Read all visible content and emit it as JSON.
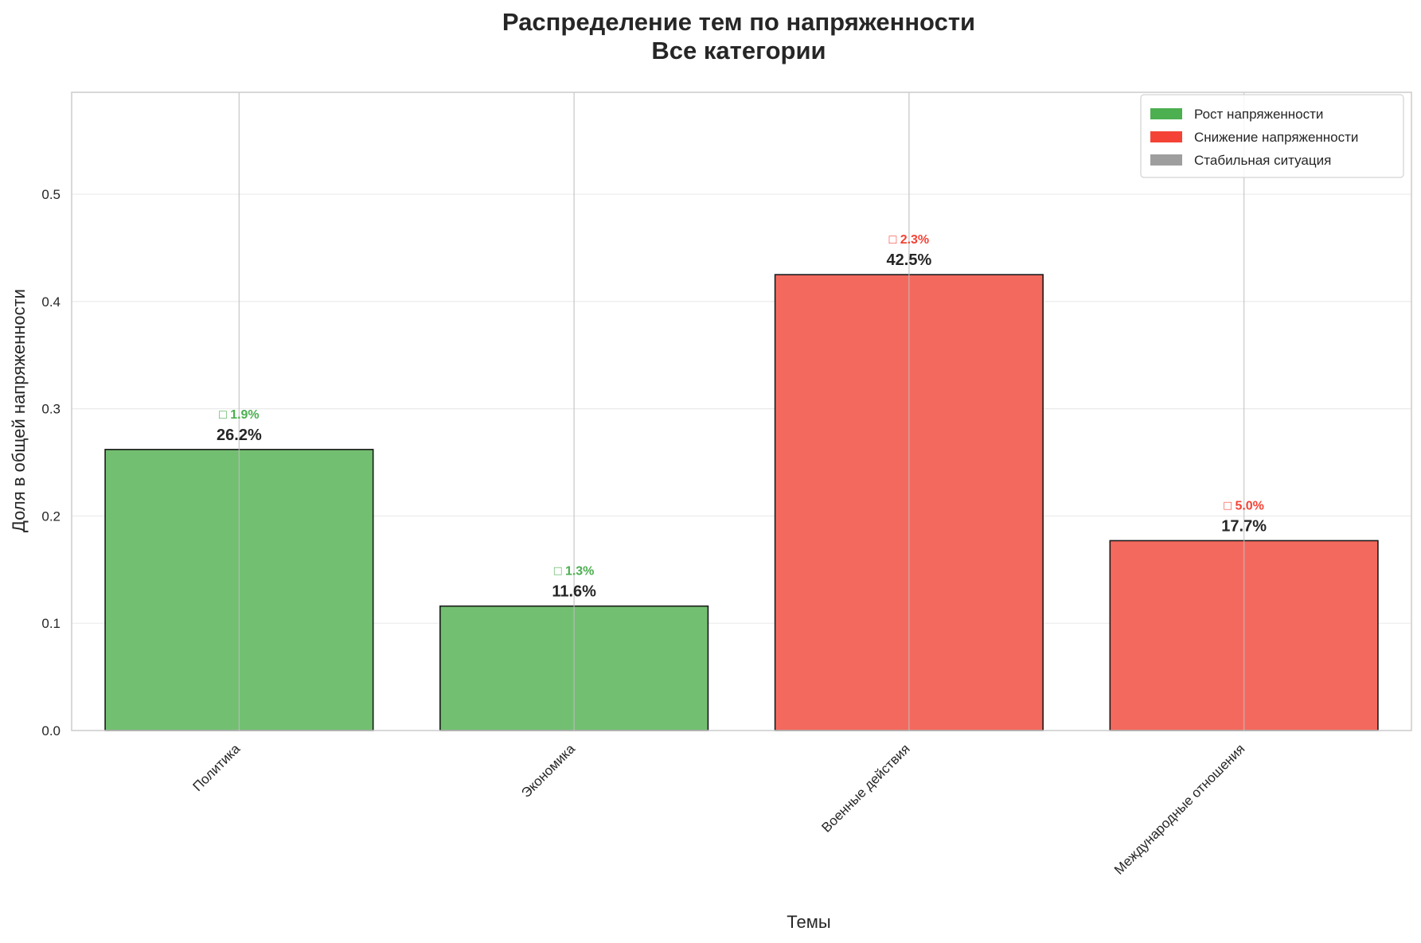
{
  "chart_data": {
    "type": "bar",
    "title": "Распределение тем по напряженности",
    "subtitle": "Все категории",
    "xlabel": "Темы",
    "ylabel": "Доля в общей напряженности",
    "categories": [
      "Политика",
      "Экономика",
      "Военные действия",
      "Международные отношения"
    ],
    "values": [
      0.262,
      0.116,
      0.425,
      0.177
    ],
    "value_labels": [
      "26.2%",
      "11.6%",
      "42.5%",
      "17.7%"
    ],
    "change_labels": [
      "□ 1.9%",
      "□ 1.3%",
      "□ 2.3%",
      "□ 5.0%"
    ],
    "trend": [
      "up",
      "up",
      "down",
      "down"
    ],
    "ylim": [
      0,
      0.595
    ],
    "yticks": [
      0.0,
      0.1,
      0.2,
      0.3,
      0.4,
      0.5
    ],
    "ytick_labels": [
      "0.0",
      "0.1",
      "0.2",
      "0.3",
      "0.4",
      "0.5"
    ],
    "grid": true,
    "legend_position": "top-right",
    "legend": [
      {
        "label": "Рост напряженности",
        "color": "#4CAF50"
      },
      {
        "label": "Снижение напряженности",
        "color": "#F44336"
      },
      {
        "label": "Стабильная ситуация",
        "color": "#9E9E9E"
      }
    ],
    "colors": {
      "up_bar": "#72BF71",
      "down_bar": "#F4695E",
      "up_text": "#4CAF50",
      "down_text": "#F44336",
      "grid": "#EBEBEB",
      "spine": "#CCCCCC",
      "bar_edge": "#1a1a1a"
    }
  }
}
